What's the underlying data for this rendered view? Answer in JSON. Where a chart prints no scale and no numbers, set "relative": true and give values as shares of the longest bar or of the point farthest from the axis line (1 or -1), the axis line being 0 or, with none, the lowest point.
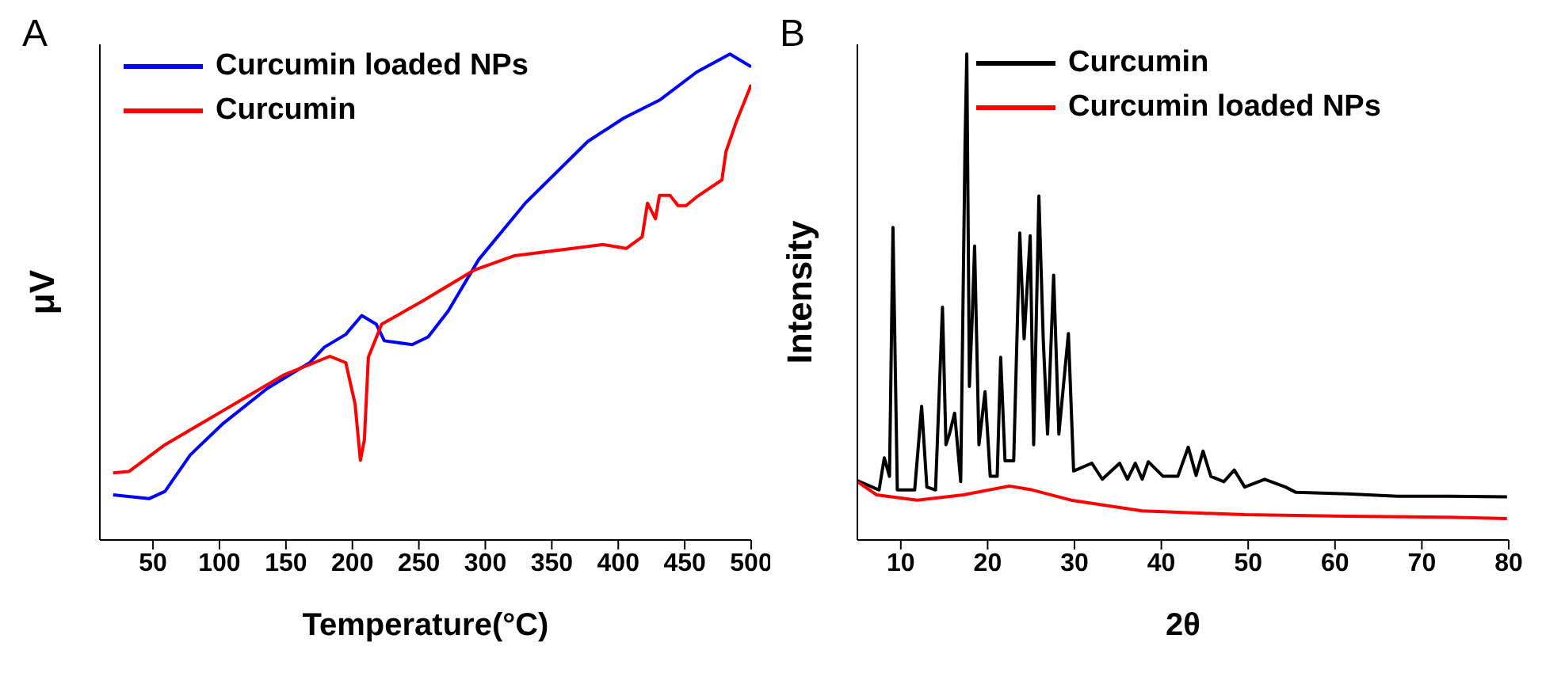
{
  "chart_data": [
    {
      "type": "line",
      "title": "A",
      "xlabel": "Temperature(°C)",
      "ylabel": "μV",
      "relative": true,
      "xlim": [
        10,
        500
      ],
      "xticks": [
        50,
        100,
        150,
        200,
        250,
        300,
        350,
        400,
        450,
        500
      ],
      "legend": "top left",
      "grid": false,
      "marker": "none",
      "line_style": "solid",
      "series": [
        {
          "name": "Curcumin loaded NPs",
          "color": "#0000ff",
          "x": [
            20,
            47,
            59,
            78,
            102,
            136,
            168,
            179,
            195,
            207,
            218,
            224,
            245,
            257,
            272,
            295,
            330,
            377,
            404,
            431,
            459,
            484,
            500
          ],
          "values": [
            0.093,
            0.085,
            0.1,
            0.175,
            0.238,
            0.312,
            0.365,
            0.397,
            0.423,
            0.462,
            0.444,
            0.41,
            0.402,
            0.418,
            0.471,
            0.577,
            0.693,
            0.82,
            0.868,
            0.905,
            0.963,
            1.0,
            0.974
          ]
        },
        {
          "name": "Curcumin",
          "color": "#ff0000",
          "x": [
            20,
            32,
            59,
            102,
            148,
            183,
            195,
            202,
            206,
            209,
            212,
            222,
            253,
            292,
            322,
            389,
            406,
            418,
            422,
            428,
            431,
            439,
            445,
            451,
            459,
            478,
            481,
            489,
            500
          ],
          "values": [
            0.138,
            0.141,
            0.196,
            0.265,
            0.339,
            0.378,
            0.365,
            0.28,
            0.164,
            0.206,
            0.376,
            0.444,
            0.492,
            0.556,
            0.585,
            0.608,
            0.6,
            0.624,
            0.693,
            0.661,
            0.709,
            0.709,
            0.688,
            0.688,
            0.706,
            0.741,
            0.799,
            0.862,
            0.937
          ]
        }
      ]
    },
    {
      "type": "line",
      "title": "B",
      "xlabel": "2θ",
      "ylabel": "Intensity",
      "relative": true,
      "xlim": [
        5,
        80
      ],
      "xticks": [
        10,
        20,
        30,
        40,
        50,
        60,
        70,
        80
      ],
      "legend": "top",
      "grid": false,
      "marker": "none",
      "line_style": "solid",
      "series": [
        {
          "name": "Curcumin",
          "color": "#000000",
          "x": [
            5,
            7.5,
            8.1,
            8.7,
            9.1,
            9.6,
            11.6,
            12.4,
            13.0,
            14.0,
            14.8,
            15.2,
            15.6,
            16.2,
            16.9,
            17.4,
            17.6,
            17.9,
            18.2,
            18.5,
            19.0,
            19.7,
            20.3,
            21.1,
            21.5,
            22.0,
            23.0,
            23.7,
            24.2,
            24.9,
            25.3,
            25.9,
            26.4,
            26.9,
            27.6,
            28.2,
            29.3,
            29.9,
            32.0,
            33.2,
            35.2,
            36.1,
            37.0,
            37.8,
            38.5,
            40.2,
            41.9,
            43.1,
            44.0,
            44.8,
            45.7,
            47.2,
            48.4,
            49.6,
            51.9,
            54.3,
            55.5,
            61.4,
            67.2,
            73.1,
            79.8
          ],
          "values": [
            0.122,
            0.103,
            0.169,
            0.131,
            0.643,
            0.103,
            0.103,
            0.275,
            0.109,
            0.103,
            0.479,
            0.196,
            0.218,
            0.261,
            0.12,
            0.817,
            1.0,
            0.316,
            0.447,
            0.605,
            0.196,
            0.305,
            0.131,
            0.131,
            0.376,
            0.163,
            0.163,
            0.632,
            0.414,
            0.626,
            0.196,
            0.708,
            0.414,
            0.218,
            0.545,
            0.218,
            0.425,
            0.142,
            0.158,
            0.125,
            0.158,
            0.125,
            0.158,
            0.125,
            0.161,
            0.131,
            0.131,
            0.191,
            0.133,
            0.183,
            0.131,
            0.12,
            0.144,
            0.109,
            0.125,
            0.109,
            0.098,
            0.095,
            0.09,
            0.09,
            0.089
          ]
        },
        {
          "name": "Curcumin loaded NPs",
          "color": "#ff0000",
          "x": [
            5,
            7.2,
            11.9,
            17.2,
            22.5,
            24.9,
            29.6,
            37.8,
            49.6,
            61.4,
            73.1,
            79.8
          ],
          "values": [
            0.12,
            0.093,
            0.082,
            0.093,
            0.111,
            0.104,
            0.082,
            0.06,
            0.052,
            0.049,
            0.047,
            0.044
          ]
        }
      ]
    }
  ]
}
